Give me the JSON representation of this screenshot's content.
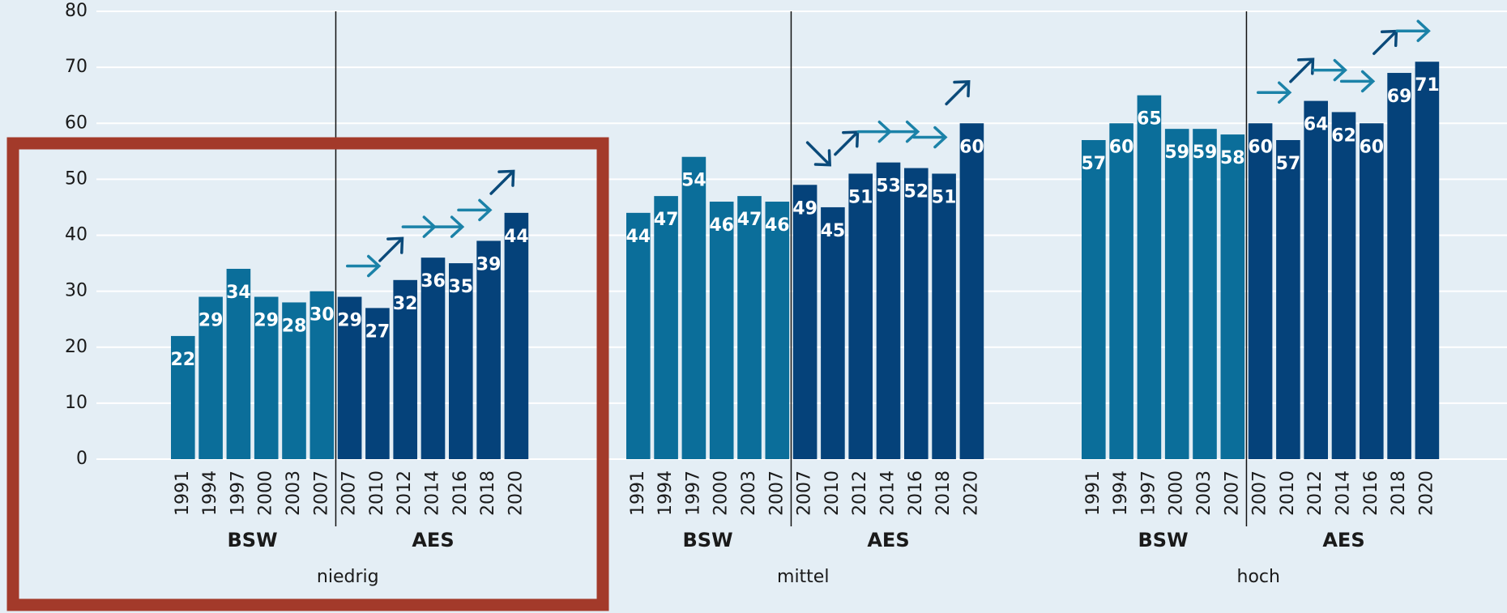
{
  "chart_data": [
    {
      "type": "bar",
      "xlabel": "niedrig",
      "categories": [
        "1991",
        "1994",
        "1997",
        "2000",
        "2003",
        "2007",
        "2007",
        "2010",
        "2012",
        "2014",
        "2016",
        "2018",
        "2020"
      ],
      "series": [
        {
          "name": "BSW",
          "color": "#0b6e9a",
          "values": [
            22,
            29,
            34,
            29,
            28,
            30,
            null,
            null,
            null,
            null,
            null,
            null,
            null
          ]
        },
        {
          "name": "AES",
          "color": "#05427a",
          "values": [
            null,
            null,
            null,
            null,
            null,
            null,
            29,
            27,
            32,
            36,
            35,
            39,
            44
          ]
        }
      ],
      "trends": [
        "right",
        "up-right",
        "right",
        "right",
        "right",
        "up-right"
      ],
      "ylim": [
        0,
        80
      ],
      "yticks": [
        0,
        10,
        20,
        30,
        40,
        50,
        60,
        70,
        80
      ],
      "grid": true
    },
    {
      "type": "bar",
      "xlabel": "mittel",
      "categories": [
        "1991",
        "1994",
        "1997",
        "2000",
        "2003",
        "2007",
        "2007",
        "2010",
        "2012",
        "2014",
        "2016",
        "2018",
        "2020"
      ],
      "series": [
        {
          "name": "BSW",
          "color": "#0b6e9a",
          "values": [
            44,
            47,
            54,
            46,
            47,
            46,
            null,
            null,
            null,
            null,
            null,
            null,
            null
          ]
        },
        {
          "name": "AES",
          "color": "#05427a",
          "values": [
            null,
            null,
            null,
            null,
            null,
            null,
            49,
            45,
            51,
            53,
            52,
            51,
            60
          ]
        }
      ],
      "trends": [
        "down-right",
        "up-right",
        "right",
        "right",
        "right",
        "up-right"
      ],
      "ylim": [
        0,
        80
      ],
      "yticks": [
        0,
        10,
        20,
        30,
        40,
        50,
        60,
        70,
        80
      ],
      "grid": true
    },
    {
      "type": "bar",
      "xlabel": "hoch",
      "categories": [
        "1991",
        "1994",
        "1997",
        "2000",
        "2003",
        "2007",
        "2007",
        "2010",
        "2012",
        "2014",
        "2016",
        "2018",
        "2020"
      ],
      "series": [
        {
          "name": "BSW",
          "color": "#0b6e9a",
          "values": [
            57,
            60,
            65,
            59,
            59,
            58,
            null,
            null,
            null,
            null,
            null,
            null,
            null
          ]
        },
        {
          "name": "AES",
          "color": "#05427a",
          "values": [
            null,
            null,
            null,
            null,
            null,
            null,
            60,
            57,
            64,
            62,
            60,
            69,
            71
          ]
        }
      ],
      "trends": [
        "right",
        "up-right",
        "right",
        "right",
        "up-right",
        "right"
      ],
      "ylim": [
        0,
        80
      ],
      "yticks": [
        0,
        10,
        20,
        30,
        40,
        50,
        60,
        70,
        80
      ],
      "grid": true
    }
  ]
}
